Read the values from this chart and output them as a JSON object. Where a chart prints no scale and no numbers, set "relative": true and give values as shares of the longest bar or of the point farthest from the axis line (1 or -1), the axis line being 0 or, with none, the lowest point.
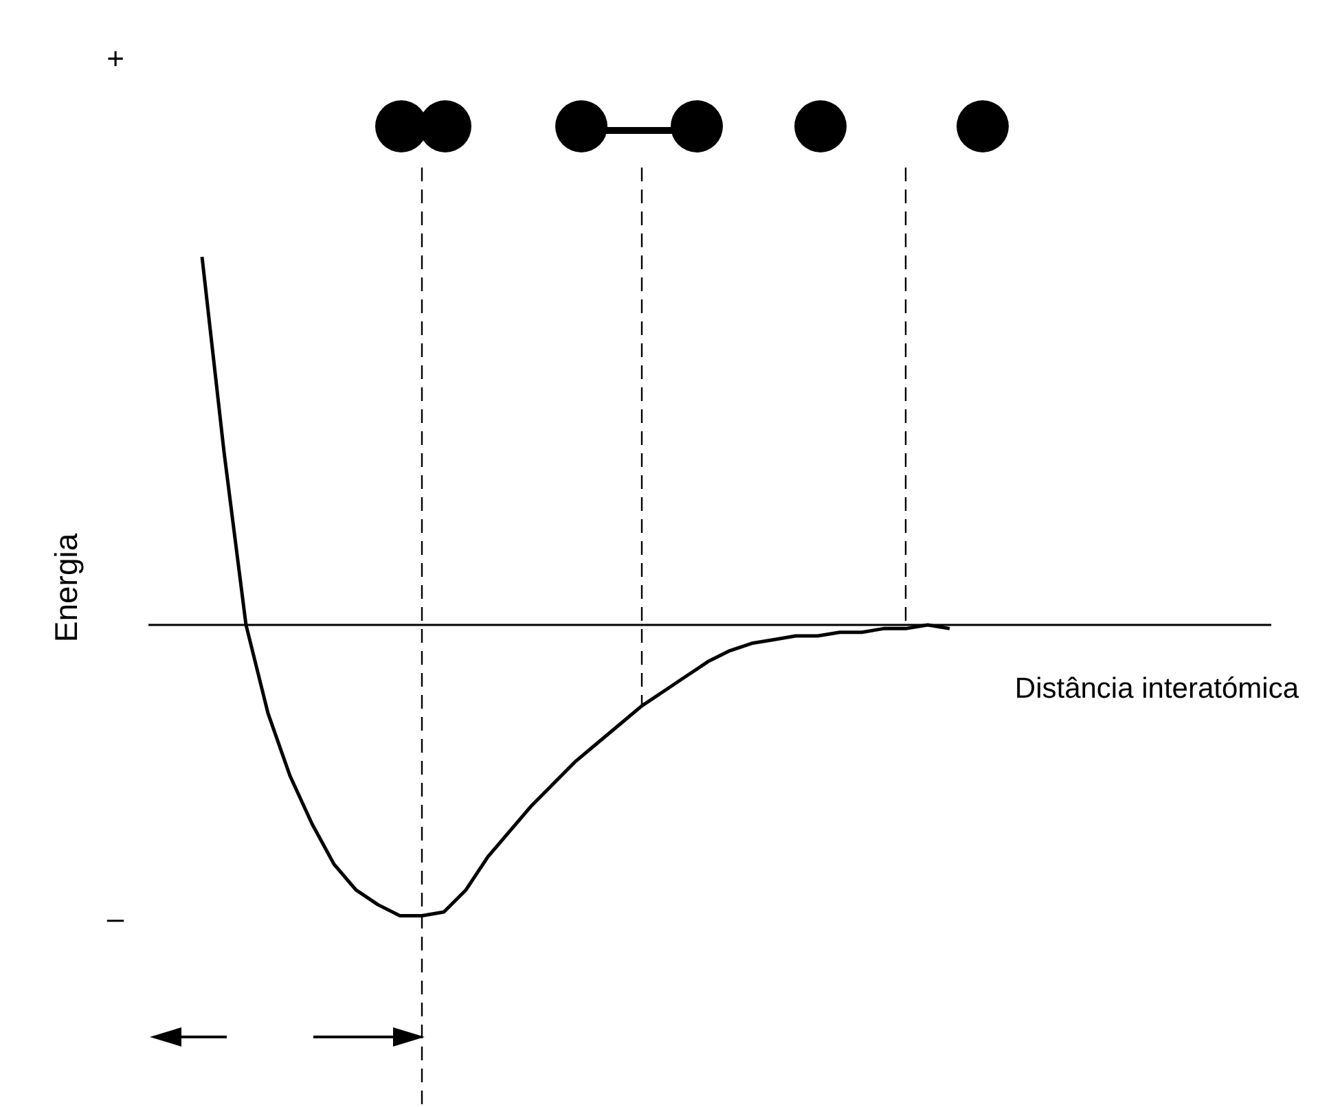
{
  "chart_data": {
    "type": "line",
    "relative": true,
    "ylabel": "Energia",
    "xlabel": "Distância interatómica",
    "categories": [
      null,
      null,
      null,
      null,
      null,
      null,
      null,
      null,
      null,
      null,
      null,
      null,
      null,
      null,
      null,
      null,
      null,
      null,
      null,
      null,
      null,
      null,
      null,
      null,
      null,
      null,
      null,
      null,
      null,
      null,
      null,
      null,
      null,
      null,
      null
    ],
    "series": [
      {
        "color": "#000000",
        "values": [
          1,
          0.47,
          0,
          -0.24,
          -0.41,
          -0.54,
          -0.65,
          -0.72,
          -0.76,
          -0.79,
          -0.79,
          -0.78,
          -0.72,
          -0.63,
          -0.56,
          -0.49,
          -0.43,
          -0.37,
          -0.32,
          -0.27,
          -0.22,
          -0.18,
          -0.14,
          -0.1,
          -0.07,
          -0.05,
          -0.04,
          -0.03,
          -0.03,
          -0.02,
          -0.02,
          -0.01,
          -0.01,
          0,
          -0.01
        ]
      }
    ],
    "annotations": [
      "+",
      "–"
    ],
    "marker": "none",
    "line_style": "solid"
  }
}
